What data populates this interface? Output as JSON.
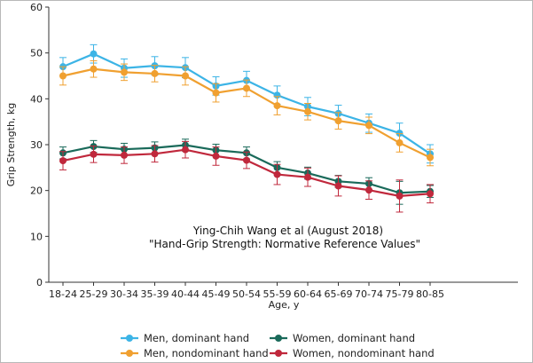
{
  "chart_data": {
    "type": "line",
    "xlabel": "Age, y",
    "ylabel": "Grip Strength, kg",
    "ylim": [
      0,
      60
    ],
    "yticks": [
      0,
      10,
      20,
      30,
      40,
      50,
      60
    ],
    "grid": false,
    "legend_position": "bottom",
    "categories": [
      "18-24",
      "25-29",
      "30-34",
      "35-39",
      "40-44",
      "45-49",
      "50-54",
      "55-59",
      "60-64",
      "65-69",
      "70-74",
      "75-79",
      "80-85"
    ],
    "annotation": {
      "line1": "Ying-Chih Wang et al (August 2018)",
      "line2": "\"Hand-Grip Strength: Normative Reference Values\""
    },
    "series": [
      {
        "name": "Men, dominant hand",
        "color": "#3cb4e6",
        "values": [
          47.0,
          49.8,
          46.7,
          47.2,
          46.8,
          42.8,
          44.0,
          40.8,
          38.3,
          36.8,
          34.7,
          32.5,
          28.0
        ],
        "err": [
          2.0,
          2.0,
          2.0,
          2.0,
          2.2,
          2.0,
          2.0,
          2.0,
          2.0,
          1.8,
          2.0,
          2.2,
          2.0
        ]
      },
      {
        "name": "Men, nondominant hand",
        "color": "#f0a030",
        "values": [
          45.0,
          46.5,
          45.8,
          45.5,
          45.0,
          41.3,
          42.3,
          38.5,
          37.2,
          35.2,
          34.2,
          30.4,
          27.2
        ],
        "err": [
          2.0,
          1.8,
          1.8,
          1.8,
          2.0,
          2.0,
          1.8,
          2.0,
          1.8,
          1.8,
          1.8,
          2.0,
          1.8
        ]
      },
      {
        "name": "Women, dominant hand",
        "color": "#1a6a5a",
        "values": [
          28.2,
          29.6,
          29.0,
          29.3,
          29.9,
          28.8,
          28.2,
          25.0,
          23.8,
          22.0,
          21.5,
          19.5,
          19.8
        ],
        "err": [
          1.3,
          1.3,
          1.3,
          1.3,
          1.3,
          1.3,
          1.3,
          1.3,
          1.3,
          1.3,
          1.3,
          2.5,
          1.3
        ]
      },
      {
        "name": "Women, nondominant hand",
        "color": "#c0283c",
        "values": [
          26.5,
          27.9,
          27.7,
          28.0,
          28.9,
          27.5,
          26.6,
          23.5,
          22.9,
          21.0,
          20.1,
          18.8,
          19.3
        ],
        "err": [
          2.0,
          1.8,
          1.8,
          1.8,
          1.8,
          2.0,
          1.8,
          2.2,
          2.0,
          2.2,
          2.0,
          3.5,
          2.0
        ]
      }
    ]
  }
}
